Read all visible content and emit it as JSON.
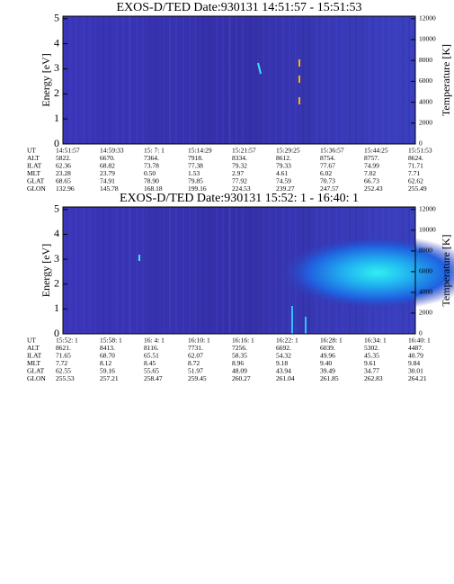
{
  "chart_data": [
    {
      "type": "spectrogram",
      "title": "EXOS-D/TED   Date:930131  14:51:57 - 15:51:53",
      "ylabel": "Energy [eV]",
      "y2label": "Temperature [K]",
      "ylim": [
        0,
        5.1
      ],
      "yticks": [
        0,
        1,
        2,
        3,
        4,
        5
      ],
      "y2lim": [
        0,
        12240
      ],
      "y2ticks": [
        0,
        2000,
        4000,
        6000,
        8000,
        10000,
        12000
      ],
      "ephemeris": {
        "labels": [
          "UT",
          "ALT",
          "ILAT",
          "MLT",
          "GLAT",
          "GLON"
        ],
        "rows": [
          [
            "14:51:57",
            "14:59:33",
            "15: 7: 1",
            "15:14:29",
            "15:21:57",
            "15:29:25",
            "15:36:57",
            "15:44:25",
            "15:51:53"
          ],
          [
            "5822.",
            "6670.",
            "7364.",
            "7918.",
            "8334.",
            "8612.",
            "8754.",
            "8757.",
            "8624."
          ],
          [
            "62.36",
            "68.82",
            "73.78",
            "77.38",
            "79.32",
            "79.33",
            "77.67",
            "74.99",
            "71.71"
          ],
          [
            "23.28",
            "23.79",
            "0.50",
            "1.53",
            "2.97",
            "4.61",
            "6.02",
            "7.02",
            "7.71"
          ],
          [
            "68.65",
            "74.91",
            "78.90",
            "79.85",
            "77.92",
            "74.59",
            "70.73",
            "66.73",
            "62.62"
          ],
          [
            "132.96",
            "145.78",
            "168.18",
            "199.16",
            "224.53",
            "239.27",
            "247.57",
            "252.43",
            "255.49"
          ]
        ]
      }
    },
    {
      "type": "spectrogram",
      "title": "EXOS-D/TED   Date:930131  15:52: 1 - 16:40: 1",
      "ylabel": "Energy [eV]",
      "y2label": "Temperature [K]",
      "ylim": [
        0,
        5.1
      ],
      "yticks": [
        0,
        1,
        2,
        3,
        4,
        5
      ],
      "y2lim": [
        0,
        12240
      ],
      "y2ticks": [
        0,
        2000,
        4000,
        6000,
        8000,
        10000,
        12000
      ],
      "ephemeris": {
        "labels": [
          "UT",
          "ALT",
          "ILAT",
          "MLT",
          "GLAT",
          "GLON"
        ],
        "rows": [
          [
            "15:52: 1",
            "15:58: 1",
            "16: 4: 1",
            "16:10: 1",
            "16:16: 1",
            "16:22: 1",
            "16:28: 1",
            "16:34: 1",
            "16:40: 1"
          ],
          [
            "8621.",
            "8413.",
            "8116.",
            "7731.",
            "7256.",
            "6692.",
            "6039.",
            "5302.",
            "4487."
          ],
          [
            "71.65",
            "68.70",
            "65.51",
            "62.07",
            "58.35",
            "54.32",
            "49.96",
            "45.35",
            "40.79"
          ],
          [
            "7.72",
            "8.12",
            "8.45",
            "8.72",
            "8.96",
            "9.18",
            "9.40",
            "9.61",
            "9.84"
          ],
          [
            "62.55",
            "59.16",
            "55.65",
            "51.97",
            "48.09",
            "43.94",
            "39.49",
            "34.77",
            "30.01"
          ],
          [
            "255.53",
            "257.21",
            "258.47",
            "259.45",
            "260.27",
            "261.04",
            "261.85",
            "262.83",
            "264.21"
          ]
        ]
      }
    }
  ]
}
